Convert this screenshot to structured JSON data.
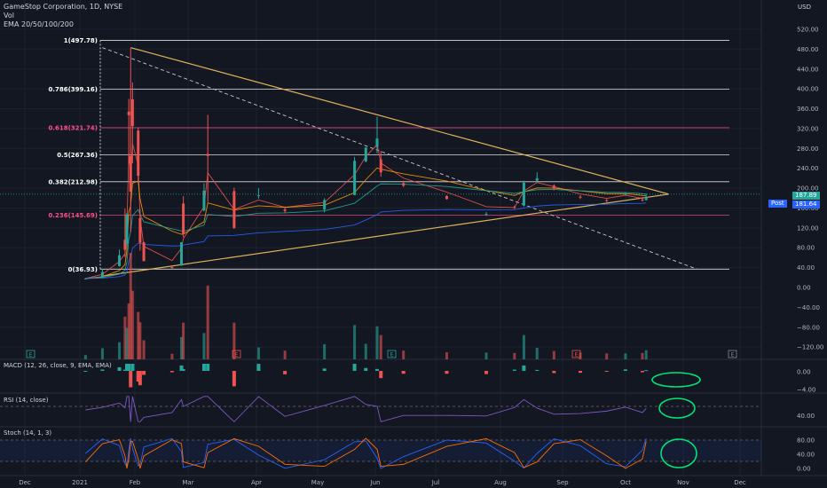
{
  "header": {
    "title": "GameStop Corporation, 1D, NYSE",
    "line2": "Vol",
    "line3": "EMA 20/50/100/200"
  },
  "colors": {
    "background": "#131722",
    "grid": "#1e222d",
    "up": "#26a69a",
    "down": "#ef5350",
    "triangle": "#e0b35a",
    "fib_white": "#ffffff",
    "fib_pink": "#ff4f8b",
    "ema20": "#ef5350",
    "ema50": "#ff9800",
    "ema100": "#26a69a",
    "ema200": "#2962ff",
    "rsi": "#7e57c2",
    "stoch_k": "#2962ff",
    "stoch_d": "#ff6d00",
    "circle": "#00e676"
  },
  "price_axis": {
    "currency": "USD",
    "ticks": [
      520,
      480,
      440,
      400,
      360,
      320,
      280,
      240,
      200,
      160,
      120,
      80,
      40,
      0,
      -40,
      -80,
      -120
    ],
    "tick_labels": [
      "520.00",
      "480.00",
      "440.00",
      "400.00",
      "360.00",
      "320.00",
      "280.00",
      "240.00",
      "200.00",
      "160.00",
      "120.00",
      "80.00",
      "40.00",
      "0.00",
      "−40.00",
      "−80.00",
      "−120.00"
    ],
    "last_price_label": "181.64",
    "last_price_prefix": "Post",
    "secondary_price_label": "187.89"
  },
  "time_axis": {
    "labels": [
      "Dec",
      "2021",
      "Feb",
      "Mar",
      "Apr",
      "May",
      "Jun",
      "Jul",
      "Aug",
      "Sep",
      "Oct",
      "Nov",
      "Dec"
    ]
  },
  "fib_levels": [
    {
      "label": "1(497.78)",
      "price": 497.78,
      "color": "white"
    },
    {
      "label": "0.786(399.16)",
      "price": 399.16,
      "color": "white"
    },
    {
      "label": "0.618(321.74)",
      "price": 321.74,
      "color": "pink"
    },
    {
      "label": "0.5(267.36)",
      "price": 267.36,
      "color": "white"
    },
    {
      "label": "0.382(212.98)",
      "price": 212.98,
      "color": "white"
    },
    {
      "label": "0.236(145.69)",
      "price": 145.69,
      "color": "pink"
    },
    {
      "label": "0(36.93)",
      "price": 36.93,
      "color": "white"
    }
  ],
  "indicators": {
    "macd_title": "MACD (12, 26, close, 9, EMA, EMA)",
    "macd_ticks": [
      "0.00",
      "−4.00"
    ],
    "rsi_title": "RSI (14, close)",
    "rsi_ticks": [
      "40.00"
    ],
    "stoch_title": "Stoch (14, 1, 3)",
    "stoch_ticks": [
      "80.00",
      "40.00",
      "0.00"
    ]
  },
  "chart_data": {
    "type": "candlestick",
    "title": "GameStop Corporation, 1D, NYSE",
    "ylim": [
      -135,
      545
    ],
    "x_range_months": [
      "2020-12",
      "2021-12"
    ],
    "candles_approx": [
      {
        "date": "2021-01-04",
        "o": 17,
        "h": 19,
        "l": 17,
        "c": 18
      },
      {
        "date": "2021-01-13",
        "o": 20,
        "h": 38,
        "l": 19,
        "c": 31
      },
      {
        "date": "2021-01-22",
        "o": 43,
        "h": 76,
        "l": 42,
        "c": 65
      },
      {
        "date": "2021-01-25",
        "o": 96,
        "h": 159,
        "l": 61,
        "c": 76
      },
      {
        "date": "2021-01-26",
        "o": 88,
        "h": 150,
        "l": 80,
        "c": 147
      },
      {
        "date": "2021-01-27",
        "o": 354,
        "h": 380,
        "l": 249,
        "c": 347
      },
      {
        "date": "2021-01-28",
        "o": 265,
        "h": 483,
        "l": 112,
        "c": 193
      },
      {
        "date": "2021-01-29",
        "o": 379,
        "h": 413,
        "l": 250,
        "c": 325
      },
      {
        "date": "2021-02-01",
        "o": 316,
        "h": 322,
        "l": 212,
        "c": 225
      },
      {
        "date": "2021-02-02",
        "o": 140,
        "h": 158,
        "l": 74,
        "c": 90
      },
      {
        "date": "2021-02-04",
        "o": 91,
        "h": 92,
        "l": 53,
        "c": 53
      },
      {
        "date": "2021-02-19",
        "o": 41,
        "h": 43,
        "l": 38,
        "c": 40
      },
      {
        "date": "2021-02-24",
        "o": 44,
        "h": 91,
        "l": 44,
        "c": 91
      },
      {
        "date": "2021-02-25",
        "o": 169,
        "h": 184,
        "l": 101,
        "c": 108
      },
      {
        "date": "2021-03-08",
        "o": 155,
        "h": 210,
        "l": 153,
        "c": 195
      },
      {
        "date": "2021-03-10",
        "o": 269,
        "h": 348,
        "l": 172,
        "c": 265
      },
      {
        "date": "2021-03-24",
        "o": 194,
        "h": 201,
        "l": 118,
        "c": 120
      },
      {
        "date": "2021-04-06",
        "o": 185,
        "h": 200,
        "l": 179,
        "c": 186
      },
      {
        "date": "2021-04-20",
        "o": 157,
        "h": 163,
        "l": 150,
        "c": 154
      },
      {
        "date": "2021-05-11",
        "o": 157,
        "h": 180,
        "l": 151,
        "c": 176
      },
      {
        "date": "2021-05-27",
        "o": 186,
        "h": 263,
        "l": 186,
        "c": 255
      },
      {
        "date": "2021-06-02",
        "o": 254,
        "h": 282,
        "l": 252,
        "c": 282
      },
      {
        "date": "2021-06-08",
        "o": 283,
        "h": 344,
        "l": 270,
        "c": 300
      },
      {
        "date": "2021-06-10",
        "o": 258,
        "h": 275,
        "l": 223,
        "c": 232
      },
      {
        "date": "2021-06-22",
        "o": 210,
        "h": 215,
        "l": 202,
        "c": 205
      },
      {
        "date": "2021-07-15",
        "o": 184,
        "h": 186,
        "l": 177,
        "c": 178
      },
      {
        "date": "2021-08-05",
        "o": 148,
        "h": 152,
        "l": 144,
        "c": 148
      },
      {
        "date": "2021-08-20",
        "o": 162,
        "h": 165,
        "l": 158,
        "c": 160
      },
      {
        "date": "2021-08-25",
        "o": 165,
        "h": 215,
        "l": 163,
        "c": 211
      },
      {
        "date": "2021-09-01",
        "o": 215,
        "h": 232,
        "l": 212,
        "c": 220
      },
      {
        "date": "2021-09-10",
        "o": 205,
        "h": 208,
        "l": 196,
        "c": 199
      },
      {
        "date": "2021-09-24",
        "o": 183,
        "h": 186,
        "l": 178,
        "c": 181
      },
      {
        "date": "2021-10-08",
        "o": 176,
        "h": 178,
        "l": 172,
        "c": 175
      },
      {
        "date": "2021-10-18",
        "o": 188,
        "h": 191,
        "l": 185,
        "c": 189
      },
      {
        "date": "2021-10-27",
        "o": 177,
        "h": 180,
        "l": 173,
        "c": 176
      },
      {
        "date": "2021-10-29",
        "o": 176,
        "h": 189,
        "l": 175,
        "c": 183
      }
    ],
    "trendlines": [
      {
        "name": "triangle-upper",
        "from": {
          "date": "2021-01-28",
          "price": 483
        },
        "to": {
          "date": "2021-11-10",
          "price": 188
        }
      },
      {
        "name": "triangle-lower",
        "from": {
          "date": "2021-01-13",
          "price": 23
        },
        "to": {
          "date": "2021-11-10",
          "price": 188
        }
      },
      {
        "name": "dashed-line",
        "from": {
          "date": "2021-01-13",
          "price": 483
        },
        "to": {
          "date": "2021-11-25",
          "price": 36.93
        }
      }
    ],
    "grid": true
  }
}
